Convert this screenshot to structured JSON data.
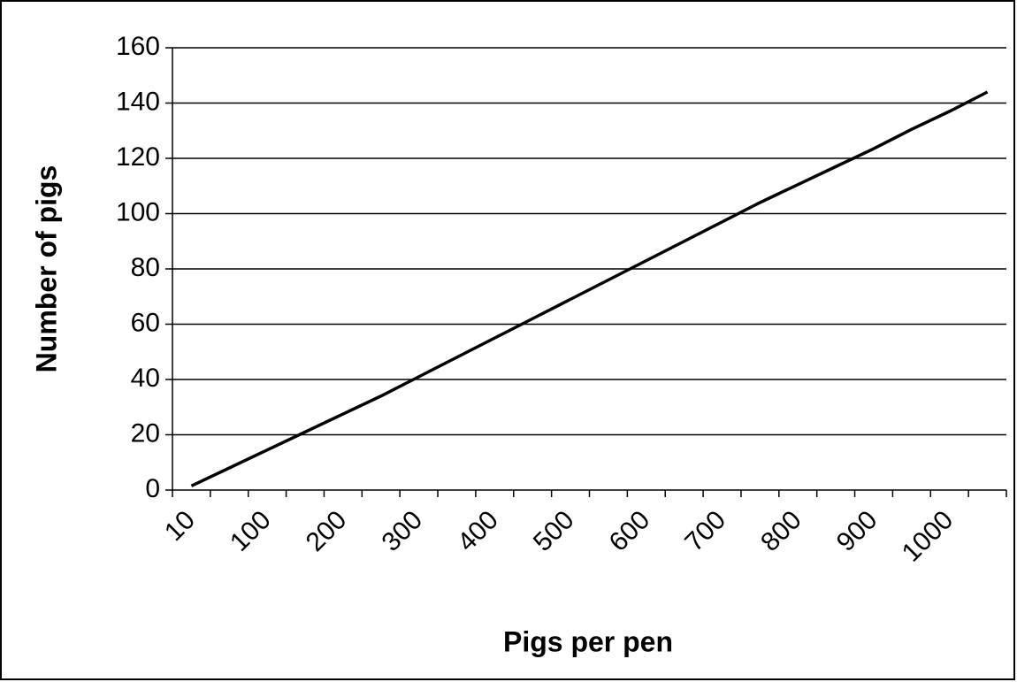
{
  "chart_data": {
    "type": "line",
    "x_label": "Pigs per pen",
    "y_label": "Number of pigs",
    "categories": [
      "10",
      null,
      "100",
      null,
      "200",
      null,
      "300",
      null,
      "400",
      null,
      "500",
      null,
      "600",
      null,
      "700",
      null,
      "800",
      null,
      "900",
      null,
      "1000",
      null
    ],
    "series": [
      {
        "name": "Number of pigs",
        "color": "#000000",
        "values": [
          1.5,
          8,
          14.5,
          21,
          27.5,
          34,
          41,
          48,
          55,
          62,
          69,
          76,
          83,
          90,
          97,
          104,
          110.5,
          117,
          123.5,
          130.5,
          137,
          144
        ]
      }
    ],
    "ylim": [
      0,
      160
    ],
    "yticks": [
      0,
      20,
      40,
      60,
      80,
      100,
      120,
      140,
      160
    ],
    "grid": true
  }
}
